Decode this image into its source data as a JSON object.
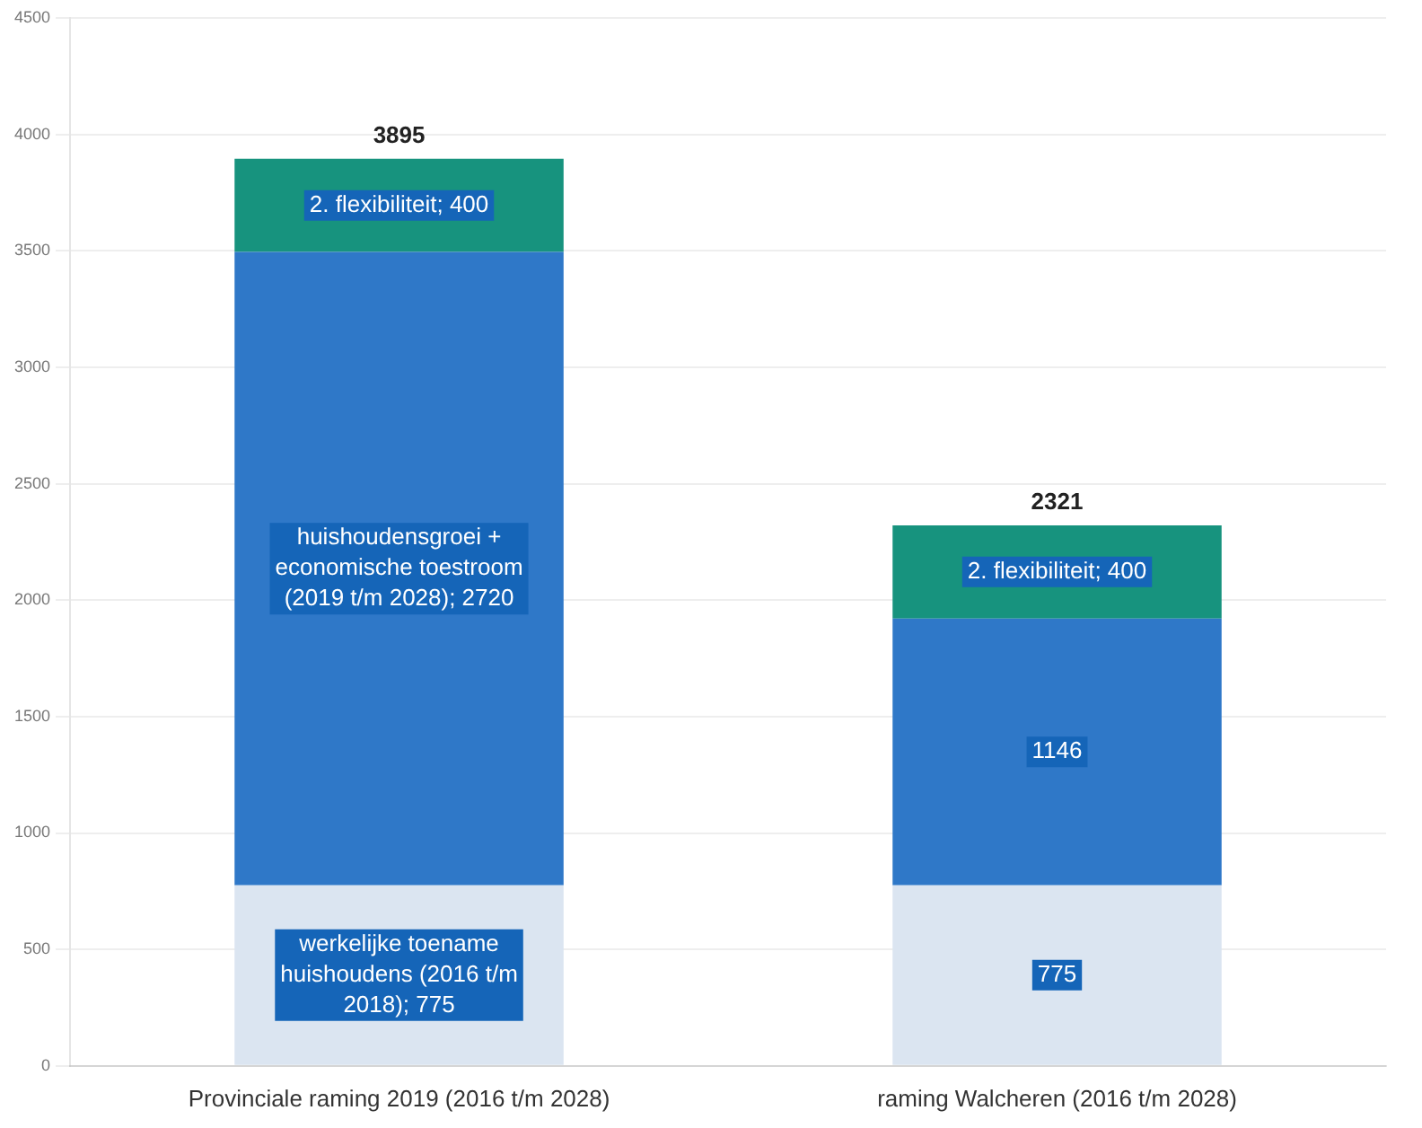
{
  "chart_data": {
    "type": "bar",
    "stacked": true,
    "categories": [
      "Provinciale raming 2019 (2016 t/m 2028)",
      "raming Walcheren (2016 t/m 2028)"
    ],
    "series": [
      {
        "color": "#dbe5f1",
        "values": [
          775,
          775
        ],
        "value_labels": [
          "werkelijke toename huishoudens (2016 t/m 2018); 775",
          "775"
        ]
      },
      {
        "color": "#2f78c8",
        "values": [
          2720,
          1146
        ],
        "value_labels": [
          "huishoudensgroei + economische toestroom (2019 t/m 2028); 2720",
          "1146"
        ]
      },
      {
        "color": "#17937e",
        "values": [
          400,
          400
        ],
        "value_labels": [
          "2. flexibiliteit; 400",
          "2. flexibiliteit; 400"
        ]
      }
    ],
    "totals": [
      "3895",
      "2321"
    ],
    "ylim": [
      0,
      4500
    ],
    "yticks": [
      0,
      500,
      1000,
      1500,
      2000,
      2500,
      3000,
      3500,
      4000,
      4500
    ],
    "grid": "y",
    "legend": false
  }
}
